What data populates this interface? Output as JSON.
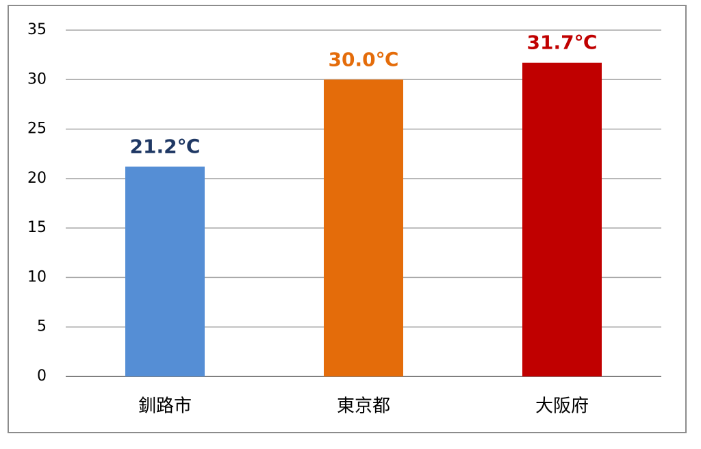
{
  "chart_data": {
    "type": "bar",
    "categories": [
      "釧路市",
      "東京都",
      "大阪府"
    ],
    "values": [
      21.2,
      30.0,
      31.7
    ],
    "value_labels": [
      "21.2℃",
      "30.0℃",
      "31.7℃"
    ],
    "colors": [
      "#558ed5",
      "#e46c0a",
      "#c00000"
    ],
    "label_colors": [
      "#1f3864",
      "#e46c0a",
      "#c00000"
    ],
    "ylim": [
      0,
      35
    ],
    "yticks": [
      0,
      5,
      10,
      15,
      20,
      25,
      30,
      35
    ],
    "grid": true
  }
}
